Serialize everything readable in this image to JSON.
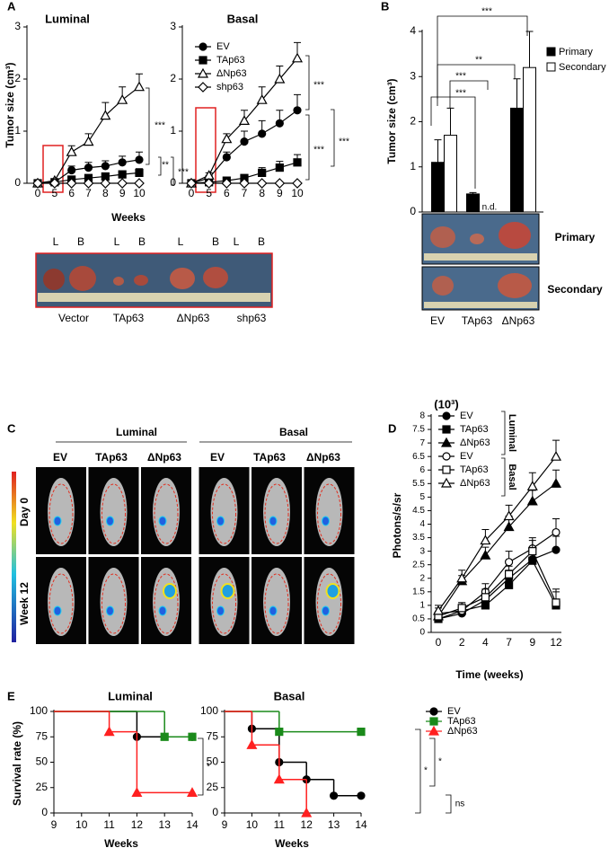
{
  "panel_labels": [
    "A",
    "B",
    "C",
    "D",
    "E"
  ],
  "chart_data": [
    {
      "type": "line",
      "title": "Luminal",
      "y_label": "Tumor size (cm³)",
      "x_label": "Weeks",
      "categories": [
        "0",
        "5",
        "6",
        "7",
        "8",
        "9",
        "10"
      ],
      "ylim": [
        0,
        3
      ],
      "yticks": [
        0,
        1,
        2,
        3
      ],
      "series": [
        {
          "color": "#000000",
          "marker": "circle",
          "filled": true,
          "values": [
            0,
            0.02,
            0.25,
            0.3,
            0.33,
            0.4,
            0.45
          ],
          "errors": [
            0,
            0.02,
            0.08,
            0.1,
            0.1,
            0.12,
            0.15
          ]
        },
        {
          "color": "#000000",
          "marker": "square",
          "filled": true,
          "values": [
            0,
            0.02,
            0.07,
            0.1,
            0.13,
            0.17,
            0.2
          ],
          "errors": [
            0,
            0.01,
            0.03,
            0.04,
            0.05,
            0.06,
            0.08
          ]
        },
        {
          "color": "#000000",
          "marker": "triangle",
          "filled": false,
          "values": [
            0,
            0.05,
            0.6,
            0.8,
            1.3,
            1.6,
            1.85
          ],
          "errors": [
            0,
            0.03,
            0.12,
            0.15,
            0.25,
            0.25,
            0.25
          ]
        },
        {
          "color": "#000000",
          "marker": "diamond",
          "filled": false,
          "values": [
            0,
            0,
            0,
            0,
            0,
            0,
            0
          ]
        }
      ],
      "annotations": [
        "***",
        "**",
        "***"
      ]
    },
    {
      "type": "line",
      "title": "Basal",
      "categories": [
        "0",
        "5",
        "6",
        "7",
        "8",
        "9",
        "10"
      ],
      "ylim": [
        0,
        3
      ],
      "yticks": [
        0,
        1,
        2,
        3
      ],
      "series": [
        {
          "name": "EV",
          "color": "#000000",
          "marker": "circle",
          "filled": true,
          "values": [
            0,
            0.1,
            0.5,
            0.8,
            0.95,
            1.15,
            1.4
          ],
          "errors": [
            0,
            0.05,
            0.1,
            0.2,
            0.25,
            0.25,
            0.3
          ]
        },
        {
          "name": "TAp63",
          "color": "#000000",
          "marker": "square",
          "filled": true,
          "values": [
            0,
            0.02,
            0.05,
            0.1,
            0.2,
            0.3,
            0.4
          ],
          "errors": [
            0,
            0.02,
            0.03,
            0.05,
            0.1,
            0.12,
            0.15
          ]
        },
        {
          "name": "ΔNp63",
          "color": "#000000",
          "marker": "triangle",
          "filled": false,
          "values": [
            0,
            0.15,
            0.85,
            1.2,
            1.6,
            2.0,
            2.4
          ],
          "errors": [
            0,
            0.05,
            0.1,
            0.2,
            0.25,
            0.25,
            0.3
          ]
        },
        {
          "name": "shp63",
          "color": "#000000",
          "marker": "diamond",
          "filled": false,
          "values": [
            0,
            0,
            0,
            0,
            0,
            0,
            0
          ]
        }
      ],
      "annotations": [
        "***",
        "***",
        "***"
      ]
    },
    {
      "type": "bar",
      "y_label": "Tumor size (cm³)",
      "categories": [
        "EV",
        "TAp63",
        "ΔNp63"
      ],
      "ylim": [
        0,
        4
      ],
      "yticks": [
        0,
        1,
        2,
        3,
        4
      ],
      "series": [
        {
          "name": "Primary",
          "color": "#000000",
          "values": [
            1.1,
            0.4,
            2.3
          ],
          "errors": [
            0.5,
            0.03,
            0.65
          ]
        },
        {
          "name": "Secondary",
          "color": "#ffffff",
          "values": [
            1.7,
            null,
            3.2
          ],
          "errors": [
            0.6,
            null,
            0.8
          ]
        }
      ],
      "annotations": [
        "***",
        "**",
        "***",
        "***",
        "n.d."
      ]
    },
    {
      "type": "line",
      "title": "(10³)",
      "y_label": "Photons/s/sr",
      "x_label": "Time (weeks)",
      "categories": [
        "0",
        "2",
        "4",
        "7",
        "9",
        "12"
      ],
      "ylim": [
        0,
        8
      ],
      "yticks": [
        0,
        0.5,
        1,
        1.5,
        2,
        2.5,
        3,
        3.5,
        4,
        4.5,
        5,
        5.5,
        6,
        6.5,
        7,
        7.5,
        8
      ],
      "legend_groups": [
        "Luminal",
        "Basal"
      ],
      "series": [
        {
          "name": "EV",
          "color": "#000000",
          "marker": "circle",
          "filled": true,
          "values": [
            0.5,
            0.7,
            1.2,
            2.0,
            2.7,
            3.05
          ],
          "errors": [
            0.1,
            0.2,
            0.3,
            0.3,
            0.4,
            0.5
          ]
        },
        {
          "name": "TAp63",
          "color": "#000000",
          "marker": "square",
          "filled": true,
          "values": [
            0.5,
            0.8,
            1.0,
            1.75,
            2.65,
            1.0
          ],
          "errors": [
            0.1,
            0.2,
            0.3,
            0.3,
            0.4,
            0.5
          ]
        },
        {
          "name": "ΔNp63",
          "color": "#000000",
          "marker": "triangle",
          "filled": true,
          "values": [
            0.6,
            1.9,
            2.85,
            3.9,
            4.85,
            5.5
          ],
          "errors": [
            0.1,
            0.2,
            0.3,
            0.4,
            0.4,
            0.5
          ]
        },
        {
          "name": "EV",
          "color": "#000000",
          "marker": "circle",
          "filled": false,
          "values": [
            0.7,
            0.8,
            1.5,
            2.6,
            3.1,
            3.7
          ],
          "errors": [
            0.2,
            0.3,
            0.3,
            0.4,
            0.4,
            0.5
          ]
        },
        {
          "name": "TAp63",
          "color": "#000000",
          "marker": "square",
          "filled": false,
          "values": [
            0.6,
            0.9,
            1.3,
            2.15,
            3.0,
            1.1
          ],
          "errors": [
            0.1,
            0.2,
            0.3,
            0.3,
            0.4,
            0.5
          ]
        },
        {
          "name": "ΔNp63",
          "color": "#000000",
          "marker": "triangle",
          "filled": false,
          "values": [
            0.8,
            2.0,
            3.4,
            4.3,
            5.4,
            6.5
          ],
          "errors": [
            0.2,
            0.3,
            0.4,
            0.4,
            0.5,
            0.6
          ]
        }
      ]
    },
    {
      "type": "step",
      "title": "Luminal",
      "y_label": "Survival rate (%)",
      "x_label": "Weeks",
      "xlim": [
        9,
        14
      ],
      "xticks": [
        9,
        10,
        11,
        12,
        13,
        14
      ],
      "ylim": [
        0,
        100
      ],
      "yticks": [
        0,
        25,
        50,
        75,
        100
      ],
      "series": [
        {
          "color": "#000000",
          "marker": "circle",
          "filled": true,
          "x": [
            9,
            12,
            14
          ],
          "values": [
            100,
            75,
            75
          ]
        },
        {
          "color": "#1a8a1a",
          "marker": "square",
          "filled": true,
          "x": [
            9,
            13,
            14
          ],
          "values": [
            100,
            75,
            75
          ]
        },
        {
          "color": "#ff2020",
          "marker": "triangle",
          "filled": true,
          "x": [
            9,
            11,
            12,
            14
          ],
          "values": [
            100,
            80,
            20,
            20
          ]
        }
      ],
      "annotations": [
        "*"
      ]
    },
    {
      "type": "step",
      "title": "Basal",
      "x_label": "Weeks",
      "xlim": [
        9,
        14
      ],
      "xticks": [
        9,
        10,
        11,
        12,
        13,
        14
      ],
      "ylim": [
        0,
        100
      ],
      "yticks": [
        0,
        25,
        50,
        75,
        100
      ],
      "series": [
        {
          "name": "EV",
          "color": "#000000",
          "marker": "circle",
          "filled": true,
          "x": [
            9,
            10,
            11,
            12,
            13,
            14
          ],
          "values": [
            100,
            83,
            50,
            33,
            17,
            17
          ]
        },
        {
          "name": "TAp63",
          "color": "#1a8a1a",
          "marker": "square",
          "filled": true,
          "x": [
            9,
            11,
            14
          ],
          "values": [
            100,
            80,
            80
          ]
        },
        {
          "name": "ΔNp63",
          "color": "#ff2020",
          "marker": "triangle",
          "filled": true,
          "x": [
            9,
            10,
            11,
            12
          ],
          "values": [
            100,
            67,
            33,
            0
          ]
        }
      ],
      "annotations": [
        "*",
        "*",
        "ns"
      ]
    }
  ],
  "photos": {
    "A": {
      "top_labels": [
        "L",
        "B",
        "L",
        "B",
        "L",
        "B",
        "L",
        "B"
      ],
      "captions": [
        "Vector",
        "TAp63",
        "ΔNp63",
        "shp63"
      ]
    },
    "B": {
      "rows": [
        "Primary",
        "Secondary"
      ],
      "captions": [
        "EV",
        "TAp63",
        "ΔNp63"
      ]
    },
    "C": {
      "groups": [
        "Luminal",
        "Basal"
      ],
      "columns": [
        "EV",
        "TAp63",
        "ΔNp63",
        "EV",
        "TAp63",
        "ΔNp63"
      ],
      "rows": [
        "Day 0",
        "Week 12"
      ]
    }
  }
}
